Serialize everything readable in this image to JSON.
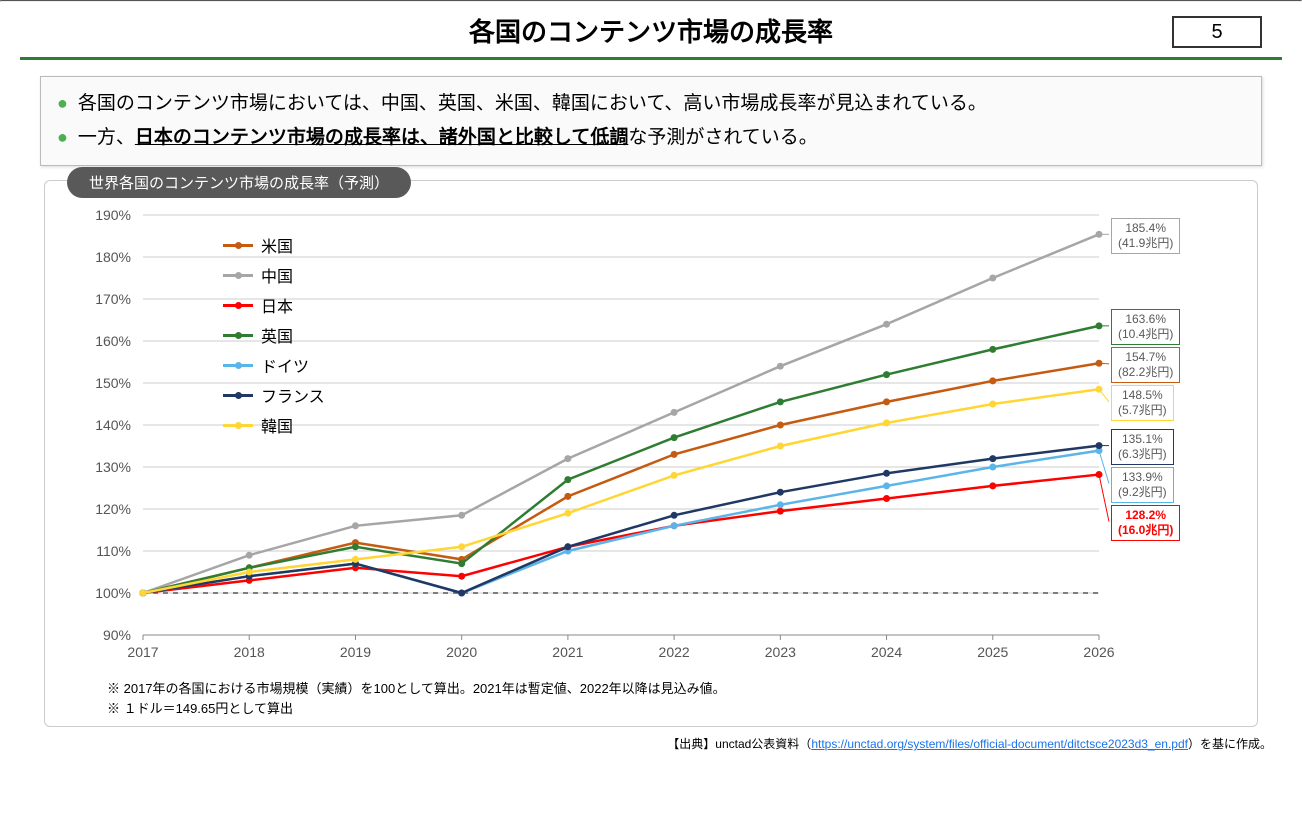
{
  "page_number": "5",
  "title": "各国のコンテンツ市場の成長率",
  "bullets": {
    "line1": "各国のコンテンツ市場においては、中国、英国、米国、韓国において、高い市場成長率が見込まれている。",
    "line2_pre": "一方、",
    "line2_u": "日本のコンテンツ市場の成長率は、諸外国と比較して低調",
    "line2_post": "な予測がされている。"
  },
  "figure_title": "世界各国のコンテンツ市場の成長率（予測）",
  "chart": {
    "type": "line",
    "background_color": "#ffffff",
    "grid_color": "#cccccc",
    "baseline_dash_color": "#555555",
    "x_labels": [
      "2017",
      "2018",
      "2019",
      "2020",
      "2021",
      "2022",
      "2023",
      "2024",
      "2025",
      "2026"
    ],
    "y_min": 90,
    "y_max": 190,
    "y_step": 10,
    "y_suffix": "%",
    "series": [
      {
        "name": "米国",
        "color": "#c55a11",
        "values": [
          100,
          106,
          112,
          108,
          123,
          133,
          140,
          145.5,
          150.5,
          154.7
        ]
      },
      {
        "name": "中国",
        "color": "#a6a6a6",
        "values": [
          100,
          109,
          116,
          118.5,
          132,
          143,
          154,
          164,
          175,
          185.4
        ]
      },
      {
        "name": "日本",
        "color": "#ff0000",
        "values": [
          100,
          103,
          106,
          104,
          111,
          116,
          119.5,
          122.5,
          125.5,
          128.2
        ]
      },
      {
        "name": "英国",
        "color": "#2e7d32",
        "values": [
          100,
          106,
          111,
          107,
          127,
          137,
          145.5,
          152,
          158,
          163.6
        ]
      },
      {
        "name": "ドイツ",
        "color": "#5bb5e8",
        "values": [
          100,
          104,
          107,
          100,
          110,
          116,
          121,
          125.5,
          130,
          133.9
        ]
      },
      {
        "name": "フランス",
        "color": "#203864",
        "values": [
          100,
          104,
          107,
          100,
          111,
          118.5,
          124,
          128.5,
          132,
          135.1
        ]
      },
      {
        "name": "韓国",
        "color": "#ffd633",
        "values": [
          100,
          105,
          108,
          111,
          119,
          128,
          135,
          140.5,
          145,
          148.5
        ]
      }
    ],
    "legend_order": [
      "米国",
      "中国",
      "日本",
      "英国",
      "ドイツ",
      "フランス",
      "韓国"
    ],
    "end_labels": [
      {
        "series": "中国",
        "line1": "185.4%",
        "line2": "(41.9兆円)",
        "border": "#a6a6a6",
        "text": "#595959",
        "bold": false
      },
      {
        "series": "英国",
        "line1": "163.6%",
        "line2": "(10.4兆円)",
        "border": "#2e7d32",
        "text": "#595959",
        "bold": false
      },
      {
        "series": "米国",
        "line1": "154.7%",
        "line2": "(82.2兆円)",
        "border": "#c55a11",
        "text": "#595959",
        "bold": false
      },
      {
        "series": "韓国",
        "line1": "148.5%",
        "line2": "(5.7兆円)",
        "border": "#ffd633",
        "text": "#595959",
        "bold": false
      },
      {
        "series": "フランス",
        "line1": "135.1%",
        "line2": "(6.3兆円)",
        "border": "#203864",
        "text": "#595959",
        "bold": false
      },
      {
        "series": "ドイツ",
        "line1": "133.9%",
        "line2": "(9.2兆円)",
        "border": "#5bb5e8",
        "text": "#595959",
        "bold": false
      },
      {
        "series": "日本",
        "line1": "128.2%",
        "line2": "(16.0兆円)",
        "border": "#ff0000",
        "text": "#ff0000",
        "bold": true
      }
    ]
  },
  "notes": {
    "n1": "※ 2017年の各国における市場規模（実績）を100として算出。2021年は暫定値、2022年以降は見込み値。",
    "n2": "※ １ドル＝149.65円として算出"
  },
  "source": {
    "pre": "【出典】unctad公表資料（",
    "url": "https://unctad.org/system/files/official-document/ditctsce2023d3_en.pdf",
    "post": "）を基に作成。"
  }
}
